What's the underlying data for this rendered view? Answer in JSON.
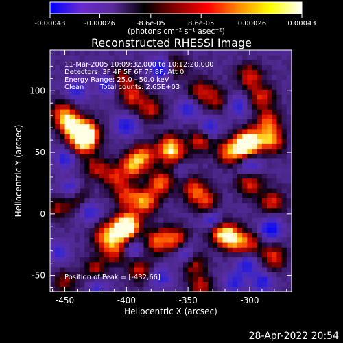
{
  "footer_timestamp": "28-Apr-2022 20:54",
  "chart_data": {
    "type": "heatmap",
    "title": "Reconstructed RHESSI Image",
    "xlabel": "Heliocentric X (arcsec)",
    "ylabel": "Heliocentric Y (arcsec)",
    "xlim": [
      -462,
      -266
    ],
    "ylim": [
      -63,
      133
    ],
    "xticks": [
      -450,
      -400,
      -350,
      -300
    ],
    "yticks": [
      -50,
      0,
      50,
      100
    ],
    "grid": false,
    "colorbar": {
      "position": "top",
      "range": [
        -0.00043,
        0.00043
      ],
      "tick_values": [
        -0.00043,
        -0.00026,
        -8.6e-05,
        8.6e-05,
        0.00026,
        0.00043
      ],
      "tick_labels": [
        "-0.00043",
        "-0.00026",
        "-8.6e-05",
        "8.6e-05",
        "0.00026",
        "0.00043"
      ],
      "unit_label": "(photons cm⁻² s⁻¹ asec⁻²)",
      "colors": [
        "#0000ff",
        "#6a2bd0",
        "#5a2a9a",
        "#000000",
        "#8a0000",
        "#ff0000",
        "#ff8c00",
        "#ffff00",
        "#ffffff"
      ]
    },
    "annotations": {
      "time_range": "11-Mar-2005 10:09:32.000 to 10:12:20.000",
      "detectors": "Detectors: 3F 4F 5F 6F 7F 8F, Att 0",
      "energy_range": "Energy Range: 25.0 - 50.0 keV",
      "clean_label": "Clean",
      "total_counts": "Total counts: 2.65E+03",
      "peak_position": "Position of Peak = [-432,66]"
    },
    "peak": [
      -432,
      66
    ],
    "hot_spots": [
      {
        "x": -432,
        "y": 66,
        "level": 1.0
      },
      {
        "x": -445,
        "y": 72,
        "level": 0.85
      },
      {
        "x": -436,
        "y": 58,
        "level": 0.8
      },
      {
        "x": -452,
        "y": 82,
        "level": 0.6
      },
      {
        "x": -395,
        "y": 96,
        "level": 0.55
      },
      {
        "x": -380,
        "y": 85,
        "level": 0.5
      },
      {
        "x": -405,
        "y": 110,
        "level": 0.45
      },
      {
        "x": -360,
        "y": 120,
        "level": 0.4
      },
      {
        "x": -340,
        "y": 100,
        "level": 0.45
      },
      {
        "x": -327,
        "y": 93,
        "level": 0.4
      },
      {
        "x": -300,
        "y": 112,
        "level": 0.55
      },
      {
        "x": -290,
        "y": 95,
        "level": 0.55
      },
      {
        "x": -285,
        "y": 75,
        "level": 0.6
      },
      {
        "x": -305,
        "y": 55,
        "level": 0.85
      },
      {
        "x": -298,
        "y": 60,
        "level": 0.75
      },
      {
        "x": -282,
        "y": 60,
        "level": 0.7
      },
      {
        "x": -317,
        "y": 50,
        "level": 0.65
      },
      {
        "x": -340,
        "y": 60,
        "level": 0.55
      },
      {
        "x": -365,
        "y": 55,
        "level": 0.75
      },
      {
        "x": -360,
        "y": 45,
        "level": 0.6
      },
      {
        "x": -385,
        "y": 48,
        "level": 0.6
      },
      {
        "x": -395,
        "y": 40,
        "level": 0.75
      },
      {
        "x": -410,
        "y": 30,
        "level": 0.5
      },
      {
        "x": -425,
        "y": 38,
        "level": 0.45
      },
      {
        "x": -372,
        "y": 25,
        "level": 0.7
      },
      {
        "x": -385,
        "y": 10,
        "level": 0.75
      },
      {
        "x": -400,
        "y": 15,
        "level": 0.55
      },
      {
        "x": -345,
        "y": 20,
        "level": 0.6
      },
      {
        "x": -335,
        "y": 10,
        "level": 0.55
      },
      {
        "x": -300,
        "y": 25,
        "level": 0.55
      },
      {
        "x": -282,
        "y": 10,
        "level": 0.55
      },
      {
        "x": -440,
        "y": 15,
        "level": 0.45
      },
      {
        "x": -455,
        "y": 5,
        "level": 0.4
      },
      {
        "x": -398,
        "y": -8,
        "level": 0.9
      },
      {
        "x": -405,
        "y": -14,
        "level": 0.85
      },
      {
        "x": -418,
        "y": -18,
        "level": 0.6
      },
      {
        "x": -410,
        "y": -30,
        "level": 0.55
      },
      {
        "x": -375,
        "y": -22,
        "level": 0.65
      },
      {
        "x": -360,
        "y": -20,
        "level": 0.6
      },
      {
        "x": -323,
        "y": -15,
        "level": 0.8
      },
      {
        "x": -313,
        "y": -20,
        "level": 0.75
      },
      {
        "x": -300,
        "y": -25,
        "level": 0.5
      },
      {
        "x": -280,
        "y": -35,
        "level": 0.55
      },
      {
        "x": -345,
        "y": -40,
        "level": 0.45
      },
      {
        "x": -390,
        "y": -45,
        "level": 0.5
      },
      {
        "x": -425,
        "y": -45,
        "level": 0.45
      },
      {
        "x": -450,
        "y": -55,
        "level": 0.4
      },
      {
        "x": -340,
        "y": -58,
        "level": 0.45
      }
    ],
    "cold_spots": [
      {
        "x": -372,
        "y": 118,
        "level": 0.9
      },
      {
        "x": -415,
        "y": 105,
        "level": 0.7
      },
      {
        "x": -350,
        "y": 85,
        "level": 0.6
      },
      {
        "x": -440,
        "y": 100,
        "level": 0.6
      },
      {
        "x": -333,
        "y": 70,
        "level": 0.7
      },
      {
        "x": -310,
        "y": 88,
        "level": 0.55
      },
      {
        "x": -400,
        "y": 72,
        "level": 0.7
      },
      {
        "x": -450,
        "y": 45,
        "level": 0.6
      },
      {
        "x": -445,
        "y": 20,
        "level": 0.75
      },
      {
        "x": -430,
        "y": 2,
        "level": 0.55
      },
      {
        "x": -357,
        "y": 40,
        "level": 0.55
      },
      {
        "x": -300,
        "y": 40,
        "level": 0.6
      },
      {
        "x": -330,
        "y": -5,
        "level": 0.7
      },
      {
        "x": -283,
        "y": -12,
        "level": 0.9
      },
      {
        "x": -352,
        "y": -32,
        "level": 0.6
      },
      {
        "x": -302,
        "y": -40,
        "level": 0.7
      },
      {
        "x": -395,
        "y": -28,
        "level": 0.5
      },
      {
        "x": -455,
        "y": -30,
        "level": 0.5
      },
      {
        "x": -423,
        "y": -58,
        "level": 0.5
      },
      {
        "x": -372,
        "y": -52,
        "level": 0.55
      },
      {
        "x": -312,
        "y": -55,
        "level": 0.6
      },
      {
        "x": -290,
        "y": -55,
        "level": 0.65
      }
    ]
  }
}
